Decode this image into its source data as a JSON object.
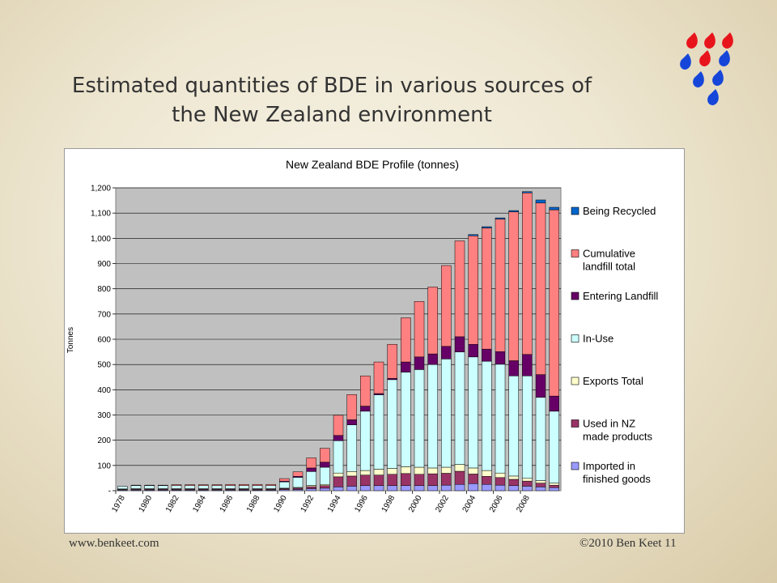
{
  "slide": {
    "title_line1": "Estimated quantities of BDE in various sources of",
    "title_line2": "the New Zealand environment",
    "footer_left": "www.benkeet.com",
    "footer_right": "©2010 Ben Keet  11",
    "logo_colors": [
      "#e8141c",
      "#1646d9"
    ]
  },
  "chart_data": {
    "type": "bar",
    "stacked": true,
    "title": "New Zealand BDE Profile (tonnes)",
    "ylabel": "Tonnes",
    "xlabel": "",
    "ylim": [
      0,
      1200
    ],
    "yticks": [
      0,
      100,
      200,
      300,
      400,
      500,
      600,
      700,
      800,
      900,
      1000,
      1100,
      1200
    ],
    "ytick_labels": [
      "-",
      "100",
      "200",
      "300",
      "400",
      "500",
      "600",
      "700",
      "800",
      "900",
      "1,000",
      "1,100",
      "1,200"
    ],
    "plot_background": "#c0c0c0",
    "grid": true,
    "legend_position": "right",
    "categories": [
      1978,
      1979,
      1980,
      1981,
      1982,
      1983,
      1984,
      1985,
      1986,
      1987,
      1988,
      1989,
      1990,
      1991,
      1992,
      1993,
      1994,
      1995,
      1996,
      1997,
      1998,
      1999,
      2000,
      2001,
      2002,
      2003,
      2004,
      2005,
      2006,
      2007,
      2008,
      2009,
      2010
    ],
    "x_tick_labels": [
      "1978",
      "1980",
      "1982",
      "1984",
      "1986",
      "1988",
      "1990",
      "1992",
      "1994",
      "1996",
      "1998",
      "2000",
      "2002",
      "2004",
      "2006",
      "2008"
    ],
    "series": [
      {
        "name": "Imported in finished goods",
        "color": "#9999ff",
        "values": [
          3,
          3,
          3,
          3,
          3,
          3,
          3,
          3,
          3,
          3,
          3,
          3,
          4,
          5,
          8,
          10,
          15,
          18,
          20,
          20,
          20,
          20,
          20,
          20,
          22,
          25,
          28,
          25,
          22,
          20,
          18,
          15,
          12
        ]
      },
      {
        "name": "Used in NZ made products",
        "color": "#993366",
        "values": [
          2,
          3,
          3,
          3,
          3,
          3,
          3,
          3,
          3,
          3,
          3,
          3,
          4,
          5,
          8,
          10,
          40,
          40,
          42,
          42,
          45,
          48,
          45,
          47,
          47,
          52,
          38,
          32,
          30,
          25,
          20,
          15,
          10
        ]
      },
      {
        "name": "Exports Total",
        "color": "#ffffcc",
        "values": [
          2,
          2,
          2,
          2,
          2,
          2,
          2,
          2,
          2,
          2,
          2,
          2,
          2,
          3,
          5,
          5,
          15,
          18,
          18,
          23,
          23,
          27,
          28,
          23,
          24,
          27,
          24,
          23,
          18,
          13,
          11,
          10,
          8
        ]
      },
      {
        "name": "In-Use",
        "color": "#ccffff",
        "values": [
          10,
          12,
          12,
          12,
          12,
          12,
          12,
          12,
          12,
          12,
          12,
          12,
          25,
          40,
          55,
          68,
          128,
          185,
          235,
          295,
          352,
          375,
          387,
          410,
          429,
          446,
          440,
          433,
          431,
          397,
          406,
          330,
          285
        ]
      },
      {
        "name": "Entering Landfill",
        "color": "#660066",
        "values": [
          0,
          0,
          0,
          0,
          0,
          0,
          0,
          0,
          0,
          0,
          0,
          0,
          3,
          4,
          14,
          20,
          21,
          20,
          20,
          5,
          5,
          40,
          50,
          42,
          50,
          60,
          50,
          48,
          50,
          60,
          85,
          90,
          60
        ]
      },
      {
        "name": "Cumulative landfill total",
        "color": "#ff8080",
        "values": [
          0,
          2,
          2,
          2,
          4,
          4,
          4,
          4,
          5,
          5,
          5,
          5,
          10,
          18,
          40,
          55,
          80,
          100,
          120,
          125,
          135,
          175,
          220,
          265,
          320,
          380,
          430,
          480,
          525,
          590,
          640,
          680,
          738
        ]
      },
      {
        "name": "Being Recycled",
        "color": "#0066cc",
        "values": [
          0,
          0,
          0,
          0,
          0,
          0,
          0,
          0,
          0,
          0,
          0,
          0,
          0,
          0,
          0,
          0,
          0,
          0,
          0,
          0,
          0,
          0,
          0,
          0,
          0,
          0,
          5,
          5,
          5,
          5,
          5,
          12,
          10
        ]
      }
    ],
    "legend_entries": [
      {
        "line1": "Being Recycled",
        "line2": ""
      },
      {
        "line1": "Cumulative",
        "line2": "landfill total"
      },
      {
        "line1": "Entering Landfill",
        "line2": ""
      },
      {
        "line1": "In-Use",
        "line2": ""
      },
      {
        "line1": "Exports Total",
        "line2": ""
      },
      {
        "line1": "Used in NZ",
        "line2": "made products"
      },
      {
        "line1": "Imported in",
        "line2": "finished goods"
      }
    ]
  }
}
